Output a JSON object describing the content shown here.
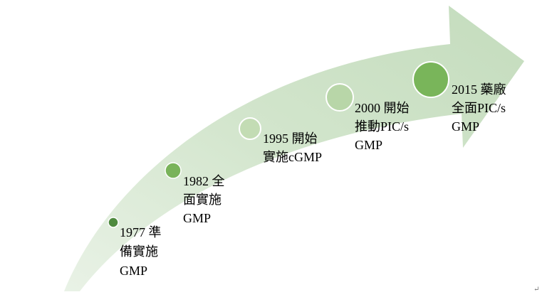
{
  "nodes": [
    {
      "lines": [
        "1977 準",
        "備實施",
        "GMP"
      ]
    },
    {
      "lines": [
        "1982 全",
        "面實施",
        "GMP"
      ]
    },
    {
      "lines": [
        "1995 開始",
        "實施cGMP"
      ]
    },
    {
      "lines": [
        "2000 開始",
        "推動PIC/s",
        "GMP"
      ]
    },
    {
      "lines": [
        "2015 藥廠",
        "全面PIC/s",
        "GMP"
      ]
    }
  ],
  "paragraph_mark": "↵"
}
